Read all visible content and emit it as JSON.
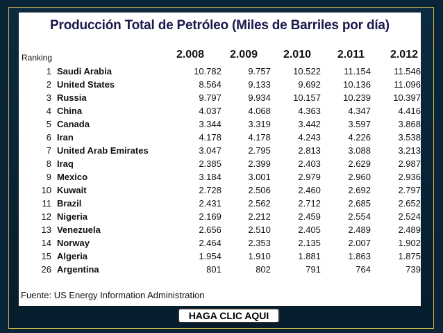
{
  "title": "Producción Total de Petróleo (Miles de Barriles por día)",
  "ranking_label": "Ranking",
  "years": [
    "2.008",
    "2.009",
    "2.010",
    "2.011",
    "2.012"
  ],
  "rows": [
    {
      "rank": "1",
      "country": "Saudi Arabia",
      "values": [
        "10.782",
        "9.757",
        "10.522",
        "11.154",
        "11.546"
      ]
    },
    {
      "rank": "2",
      "country": "United States",
      "values": [
        "8.564",
        "9.133",
        "9.692",
        "10.136",
        "11.096"
      ]
    },
    {
      "rank": "3",
      "country": "Russia",
      "values": [
        "9.797",
        "9.934",
        "10.157",
        "10.239",
        "10.397"
      ]
    },
    {
      "rank": "4",
      "country": "China",
      "values": [
        "4.037",
        "4.068",
        "4.363",
        "4.347",
        "4.416"
      ]
    },
    {
      "rank": "5",
      "country": "Canada",
      "values": [
        "3.344",
        "3.319",
        "3.442",
        "3.597",
        "3.868"
      ]
    },
    {
      "rank": "6",
      "country": "Iran",
      "values": [
        "4.178",
        "4.178",
        "4.243",
        "4.226",
        "3.538"
      ]
    },
    {
      "rank": "7",
      "country": "United Arab Emirates",
      "values": [
        "3.047",
        "2.795",
        "2.813",
        "3.088",
        "3.213"
      ]
    },
    {
      "rank": "8",
      "country": "Iraq",
      "values": [
        "2.385",
        "2.399",
        "2.403",
        "2.629",
        "2.987"
      ]
    },
    {
      "rank": "9",
      "country": "Mexico",
      "values": [
        "3.184",
        "3.001",
        "2.979",
        "2.960",
        "2.936"
      ]
    },
    {
      "rank": "10",
      "country": "Kuwait",
      "values": [
        "2.728",
        "2.506",
        "2.460",
        "2.692",
        "2.797"
      ]
    },
    {
      "rank": "11",
      "country": "Brazil",
      "values": [
        "2.431",
        "2.562",
        "2.712",
        "2.685",
        "2.652"
      ]
    },
    {
      "rank": "12",
      "country": "Nigeria",
      "values": [
        "2.169",
        "2.212",
        "2.459",
        "2.554",
        "2.524"
      ]
    },
    {
      "rank": "13",
      "country": "Venezuela",
      "values": [
        "2.656",
        "2.510",
        "2.405",
        "2.489",
        "2.489"
      ]
    },
    {
      "rank": "14",
      "country": "Norway",
      "values": [
        "2.464",
        "2.353",
        "2.135",
        "2.007",
        "1.902"
      ]
    },
    {
      "rank": "15",
      "country": "Algeria",
      "values": [
        "1.954",
        "1.910",
        "1.881",
        "1.863",
        "1.875"
      ]
    },
    {
      "rank": "26",
      "country": "Argentina",
      "values": [
        "801",
        "802",
        "791",
        "764",
        "739"
      ]
    }
  ],
  "source": "Fuente: US Energy Information Administration",
  "cta_label": "HAGA CLIC AQUI",
  "colors": {
    "background": "#0a2538",
    "frame_border": "#c9b24a",
    "title": "#1a1a4d"
  }
}
